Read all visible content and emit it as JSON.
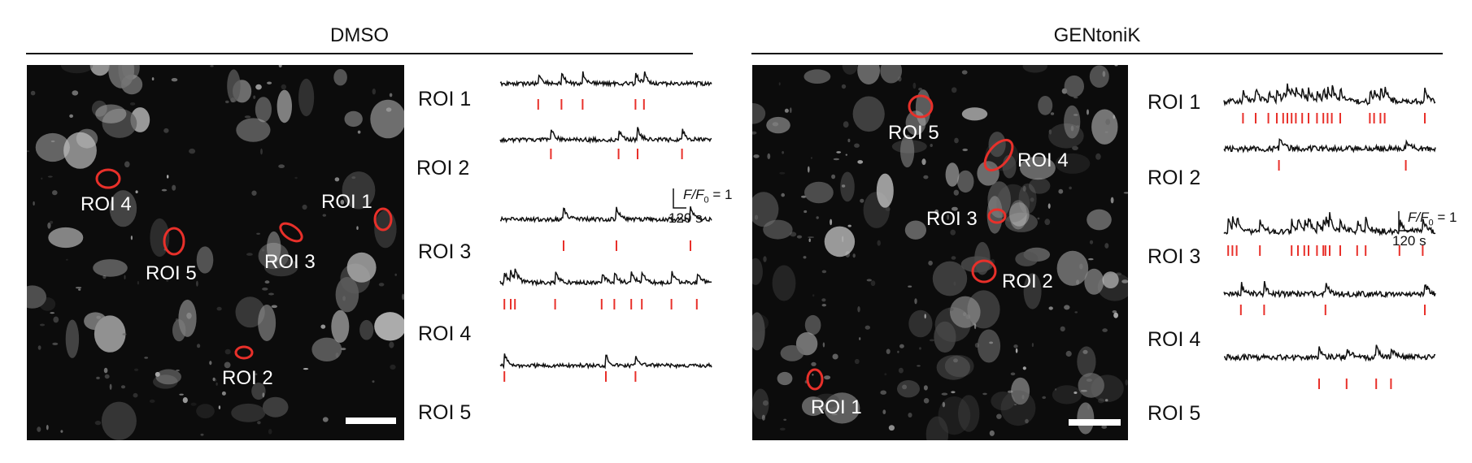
{
  "panels": [
    {
      "title": "DMSO",
      "roi_labels": [
        "ROI 1",
        "ROI 2",
        "ROI 3",
        "ROI 4",
        "ROI 5"
      ],
      "trace_labels": [
        "ROI 1",
        "ROI 2",
        "ROI 3",
        "ROI 4",
        "ROI 5"
      ],
      "scale_bar": {
        "ratio": "F/F",
        "subscript": "0",
        "value": "= 1",
        "time": "120 s"
      }
    },
    {
      "title": "GENtoniK",
      "roi_labels": [
        "ROI 1",
        "ROI 2",
        "ROI 3",
        "ROI 4",
        "ROI 5"
      ],
      "trace_labels": [
        "ROI 1",
        "ROI 2",
        "ROI 3",
        "ROI 4",
        "ROI 5"
      ],
      "scale_bar": {
        "ratio": "F/F",
        "subscript": "0",
        "value": "= 1",
        "time": "120 s"
      }
    }
  ],
  "colors": {
    "roi_outline": "#e8302a",
    "event_tick": "#e8302a",
    "trace": "#111111",
    "image_bg": "#0c0c0c",
    "scale_bar": "#ffffff"
  },
  "chart_data": [
    {
      "type": "line",
      "title": "DMSO",
      "series": [
        {
          "name": "ROI 1",
          "events": [
            0.18,
            0.29,
            0.39,
            0.64,
            0.68
          ]
        },
        {
          "name": "ROI 2",
          "events": [
            0.24,
            0.56,
            0.65,
            0.86
          ]
        },
        {
          "name": "ROI 3",
          "events": [
            0.3,
            0.55,
            0.9
          ]
        },
        {
          "name": "ROI 4",
          "events": [
            0.02,
            0.05,
            0.07,
            0.26,
            0.48,
            0.54,
            0.62,
            0.67,
            0.81,
            0.93
          ]
        },
        {
          "name": "ROI 5",
          "events": [
            0.02,
            0.5,
            0.64
          ]
        }
      ]
    },
    {
      "type": "line",
      "title": "GENtoniK",
      "series": [
        {
          "name": "ROI 1",
          "events": [
            0.09,
            0.15,
            0.21,
            0.25,
            0.28,
            0.3,
            0.32,
            0.34,
            0.37,
            0.4,
            0.44,
            0.47,
            0.49,
            0.51,
            0.55,
            0.69,
            0.71,
            0.74,
            0.76,
            0.95
          ]
        },
        {
          "name": "ROI 2",
          "events": [
            0.26,
            0.86
          ]
        },
        {
          "name": "ROI 3",
          "events": [
            0.02,
            0.04,
            0.06,
            0.17,
            0.32,
            0.35,
            0.38,
            0.4,
            0.44,
            0.47,
            0.48,
            0.5,
            0.55,
            0.63,
            0.67,
            0.83,
            0.94
          ]
        },
        {
          "name": "ROI 4",
          "events": [
            0.08,
            0.19,
            0.48,
            0.95
          ]
        },
        {
          "name": "ROI 5",
          "events": [
            0.45,
            0.58,
            0.72,
            0.79
          ]
        }
      ]
    }
  ]
}
